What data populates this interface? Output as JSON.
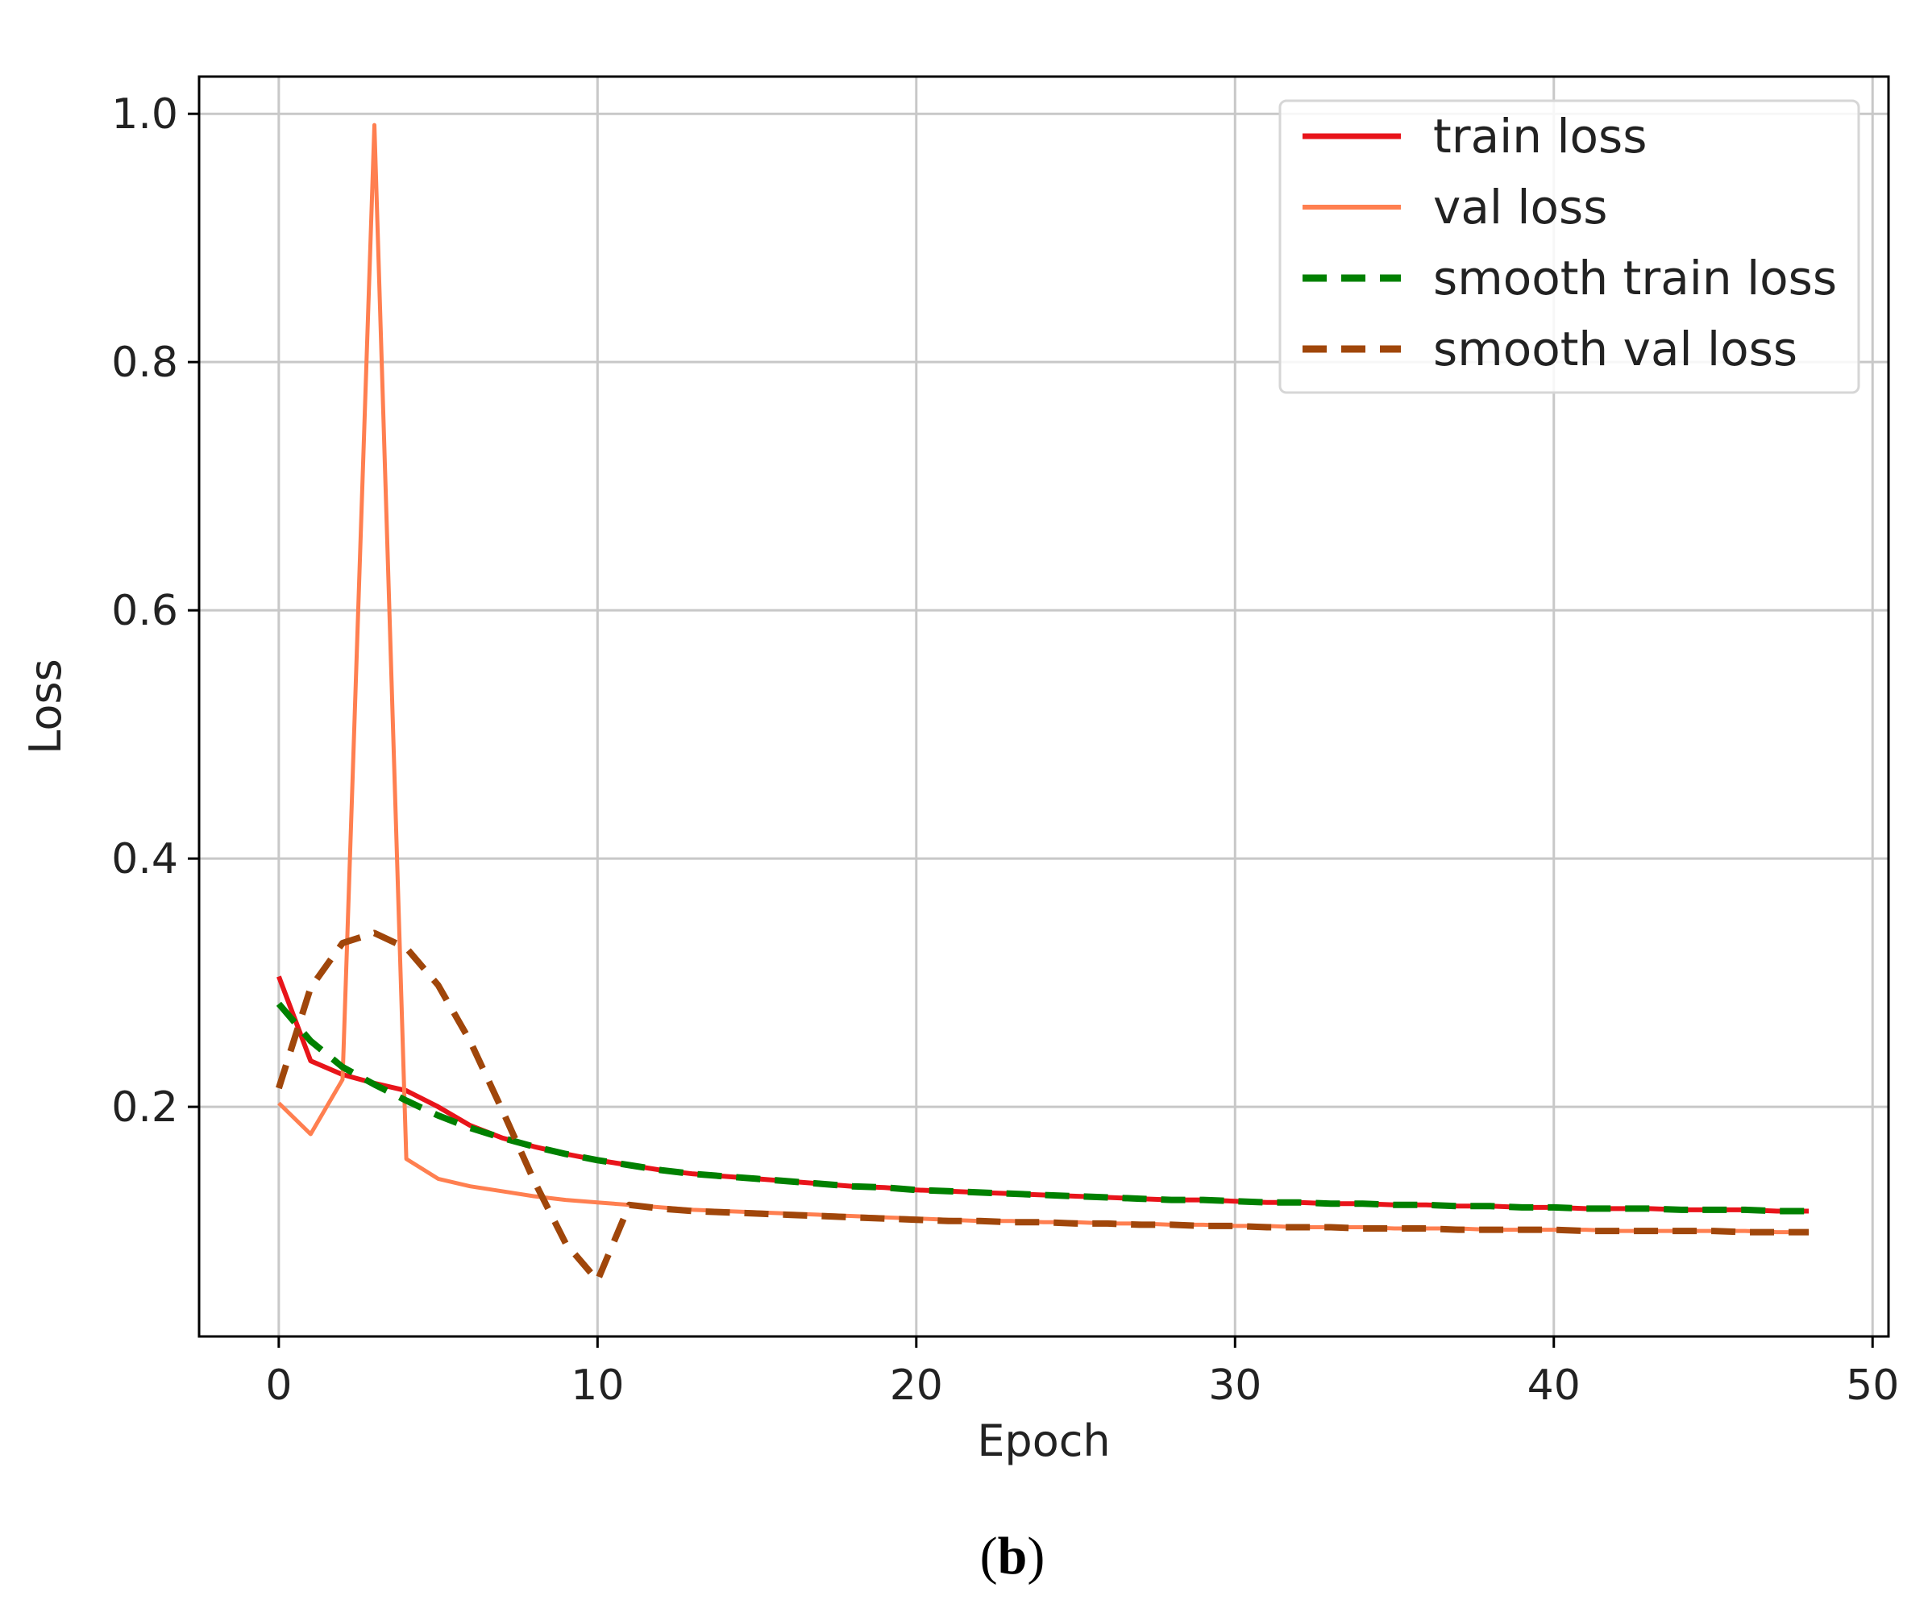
{
  "chart_data": {
    "type": "line",
    "xlabel": "Epoch",
    "ylabel": "Loss",
    "xlim": [
      -2.5,
      50.5
    ],
    "ylim": [
      0.015,
      1.03
    ],
    "x_ticks": [
      0,
      10,
      20,
      30,
      40,
      50
    ],
    "y_ticks": [
      0.2,
      0.4,
      0.6,
      0.8,
      1.0
    ],
    "x_tick_labels": [
      "0",
      "10",
      "20",
      "30",
      "40",
      "50"
    ],
    "y_tick_labels": [
      "0.2",
      "0.4",
      "0.6",
      "0.8",
      "1.0"
    ],
    "grid": true,
    "legend_position": "top-right",
    "series": [
      {
        "name": "train loss",
        "color": "#e8141a",
        "style": "solid",
        "x": [
          0,
          1,
          2,
          3,
          4,
          5,
          6,
          7,
          8,
          9,
          10,
          11,
          12,
          13,
          14,
          15,
          16,
          17,
          18,
          19,
          20,
          21,
          22,
          23,
          24,
          25,
          26,
          27,
          28,
          29,
          30,
          31,
          32,
          33,
          34,
          35,
          36,
          37,
          38,
          39,
          40,
          41,
          42,
          43,
          44,
          45,
          46,
          47,
          48
        ],
        "y": [
          0.305,
          0.237,
          0.226,
          0.219,
          0.213,
          0.2,
          0.185,
          0.175,
          0.168,
          0.162,
          0.157,
          0.153,
          0.149,
          0.146,
          0.144,
          0.142,
          0.14,
          0.138,
          0.136,
          0.135,
          0.133,
          0.132,
          0.131,
          0.13,
          0.129,
          0.128,
          0.127,
          0.126,
          0.125,
          0.125,
          0.124,
          0.123,
          0.123,
          0.122,
          0.122,
          0.121,
          0.121,
          0.12,
          0.12,
          0.119,
          0.119,
          0.118,
          0.118,
          0.118,
          0.117,
          0.117,
          0.117,
          0.116,
          0.116
        ]
      },
      {
        "name": "val loss",
        "color": "#ff7f50",
        "style": "solid",
        "x": [
          0,
          1,
          2,
          3,
          4,
          5,
          6,
          7,
          8,
          9,
          10,
          11,
          12,
          13,
          14,
          15,
          16,
          17,
          18,
          19,
          20,
          21,
          22,
          23,
          24,
          25,
          26,
          27,
          28,
          29,
          30,
          31,
          32,
          33,
          34,
          35,
          36,
          37,
          38,
          39,
          40,
          41,
          42,
          43,
          44,
          45,
          46,
          47,
          48
        ],
        "y": [
          0.203,
          0.178,
          0.222,
          0.991,
          0.158,
          0.142,
          0.136,
          0.132,
          0.128,
          0.125,
          0.123,
          0.121,
          0.119,
          0.117,
          0.116,
          0.115,
          0.114,
          0.113,
          0.112,
          0.111,
          0.11,
          0.109,
          0.108,
          0.108,
          0.107,
          0.107,
          0.106,
          0.106,
          0.105,
          0.105,
          0.104,
          0.104,
          0.103,
          0.103,
          0.103,
          0.102,
          0.102,
          0.102,
          0.101,
          0.101,
          0.101,
          0.101,
          0.1,
          0.1,
          0.1,
          0.1,
          0.1,
          0.099,
          0.099
        ]
      },
      {
        "name": "smooth train loss",
        "color": "#008000",
        "style": "dashed",
        "x": [
          0,
          1,
          2,
          3,
          4,
          5,
          6,
          7,
          8,
          9,
          10,
          11,
          12,
          13,
          14,
          15,
          16,
          17,
          18,
          19,
          20,
          21,
          22,
          23,
          24,
          25,
          26,
          27,
          28,
          29,
          30,
          31,
          32,
          33,
          34,
          35,
          36,
          37,
          38,
          39,
          40,
          41,
          42,
          43,
          44,
          45,
          46,
          47,
          48
        ],
        "y": [
          0.283,
          0.253,
          0.232,
          0.218,
          0.205,
          0.193,
          0.183,
          0.175,
          0.168,
          0.162,
          0.157,
          0.153,
          0.149,
          0.146,
          0.144,
          0.142,
          0.14,
          0.138,
          0.136,
          0.135,
          0.133,
          0.132,
          0.131,
          0.13,
          0.129,
          0.128,
          0.127,
          0.126,
          0.125,
          0.125,
          0.124,
          0.123,
          0.123,
          0.122,
          0.122,
          0.121,
          0.121,
          0.12,
          0.12,
          0.119,
          0.119,
          0.118,
          0.118,
          0.118,
          0.117,
          0.117,
          0.117,
          0.116,
          0.116
        ]
      },
      {
        "name": "smooth val loss",
        "color": "#a0460a",
        "style": "dashed",
        "x": [
          0,
          1,
          2,
          3,
          4,
          5,
          6,
          7,
          8,
          9,
          10,
          11,
          12,
          13,
          14,
          15,
          16,
          17,
          18,
          19,
          20,
          21,
          22,
          23,
          24,
          25,
          26,
          27,
          28,
          29,
          30,
          31,
          32,
          33,
          34,
          35,
          36,
          37,
          38,
          39,
          40,
          41,
          42,
          43,
          44,
          45,
          46,
          47,
          48
        ],
        "y": [
          0.215,
          0.296,
          0.332,
          0.34,
          0.328,
          0.298,
          0.253,
          0.198,
          0.141,
          0.09,
          0.06,
          0.121,
          0.118,
          0.116,
          0.115,
          0.114,
          0.113,
          0.112,
          0.111,
          0.11,
          0.109,
          0.108,
          0.108,
          0.107,
          0.107,
          0.106,
          0.106,
          0.105,
          0.105,
          0.104,
          0.104,
          0.103,
          0.103,
          0.103,
          0.102,
          0.102,
          0.102,
          0.101,
          0.101,
          0.101,
          0.101,
          0.1,
          0.1,
          0.1,
          0.1,
          0.1,
          0.099,
          0.099,
          0.099
        ]
      }
    ]
  },
  "caption": {
    "open": "(",
    "letter": "b",
    "close": ")"
  }
}
